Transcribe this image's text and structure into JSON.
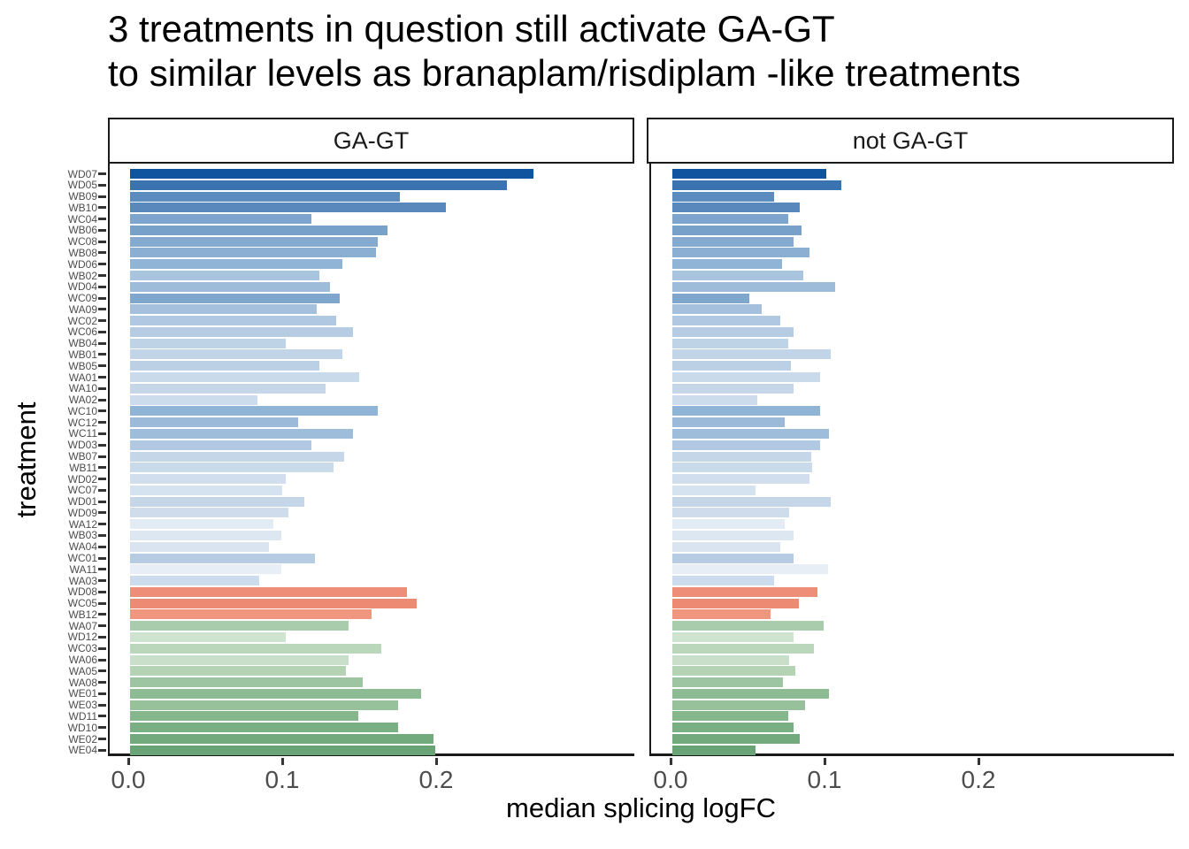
{
  "title": {
    "line1": "3 treatments in question still activate GA-GT",
    "line2": "to similar levels as branaplam/risdiplam -like treatments"
  },
  "chart_data": {
    "type": "bar",
    "orientation": "horizontal",
    "title": "3 treatments in question still activate GA-GT to similar levels as branaplam/risdiplam -like treatments",
    "xlabel": "median splicing logFC",
    "ylabel": "treatment",
    "facets": [
      "GA-GT",
      "not GA-GT"
    ],
    "legend": "none",
    "grid": false,
    "x_tick_labels": [
      "0.0",
      "0.1",
      "0.2"
    ],
    "x_tick_values": [
      0,
      0.1,
      0.2
    ],
    "xlim": [
      0,
      0.33
    ],
    "categories": [
      "WD07",
      "WD05",
      "WB09",
      "WB10",
      "WC04",
      "WB06",
      "WC08",
      "WB08",
      "WD06",
      "WB02",
      "WD04",
      "WC09",
      "WA09",
      "WC02",
      "WC06",
      "WB04",
      "WB01",
      "WB05",
      "WA01",
      "WA10",
      "WA02",
      "WC10",
      "WC12",
      "WC11",
      "WD03",
      "WB07",
      "WB11",
      "WD02",
      "WC07",
      "WD01",
      "WD09",
      "WA12",
      "WB03",
      "WA04",
      "WC01",
      "WA11",
      "WA03",
      "WD08",
      "WC05",
      "WB12",
      "WA07",
      "WD12",
      "WC03",
      "WA06",
      "WA05",
      "WA08",
      "WE01",
      "WE03",
      "WD11",
      "WD10",
      "WE02",
      "WE04"
    ],
    "series": [
      {
        "name": "GA-GT",
        "values": [
          0.262,
          0.245,
          0.175,
          0.205,
          0.118,
          0.167,
          0.161,
          0.16,
          0.138,
          0.123,
          0.13,
          0.136,
          0.121,
          0.134,
          0.145,
          0.101,
          0.138,
          0.123,
          0.149,
          0.127,
          0.083,
          0.161,
          0.109,
          0.145,
          0.118,
          0.139,
          0.132,
          0.101,
          0.099,
          0.113,
          0.103,
          0.093,
          0.098,
          0.09,
          0.12,
          0.098,
          0.084,
          0.18,
          0.186,
          0.157,
          0.142,
          0.101,
          0.163,
          0.142,
          0.14,
          0.151,
          0.189,
          0.174,
          0.148,
          0.174,
          0.197,
          0.198
        ]
      },
      {
        "name": "not GA-GT",
        "values": [
          0.1,
          0.11,
          0.066,
          0.083,
          0.075,
          0.084,
          0.079,
          0.089,
          0.071,
          0.085,
          0.106,
          0.05,
          0.058,
          0.07,
          0.079,
          0.075,
          0.103,
          0.077,
          0.096,
          0.079,
          0.055,
          0.096,
          0.073,
          0.102,
          0.096,
          0.09,
          0.091,
          0.089,
          0.054,
          0.103,
          0.076,
          0.073,
          0.079,
          0.07,
          0.079,
          0.101,
          0.066,
          0.094,
          0.082,
          0.064,
          0.098,
          0.079,
          0.092,
          0.076,
          0.08,
          0.072,
          0.102,
          0.086,
          0.075,
          0.079,
          0.083,
          0.054
        ]
      }
    ],
    "bar_colors": [
      "#10539e",
      "#3a73b0",
      "#5c8bc0",
      "#5988bd",
      "#7ea5cd",
      "#78a1ca",
      "#84aad0",
      "#8bafd3",
      "#90b4d6",
      "#a9c4de",
      "#9dbcda",
      "#7fa6cd",
      "#a4c0dc",
      "#b0c8e1",
      "#b5cce3",
      "#bfd3e7",
      "#c2d5e8",
      "#bbd0e5",
      "#c9daea",
      "#c4d6e8",
      "#cddcec",
      "#90b4d6",
      "#9bbad9",
      "#9ebdda",
      "#b0c8e1",
      "#c4d6e8",
      "#c9daea",
      "#d0deee",
      "#d5e2f0",
      "#c4d6e8",
      "#cedcec",
      "#e3ebf5",
      "#dde7f2",
      "#d9e4f0",
      "#b5cce3",
      "#e7eef6",
      "#cddcec",
      "#ee8e78",
      "#ec8a73",
      "#f0967f",
      "#a9ccac",
      "#cfe4cf",
      "#bad7bb",
      "#c9dfc9",
      "#b4d3b5",
      "#9ec5a2",
      "#8dbc94",
      "#96c19b",
      "#85b68c",
      "#7aaf83",
      "#73aa7d",
      "#69a476"
    ],
    "axis_color": "#1a1a1a",
    "tick_color": "#333333",
    "tick_label_color": "#4d4d4d"
  }
}
